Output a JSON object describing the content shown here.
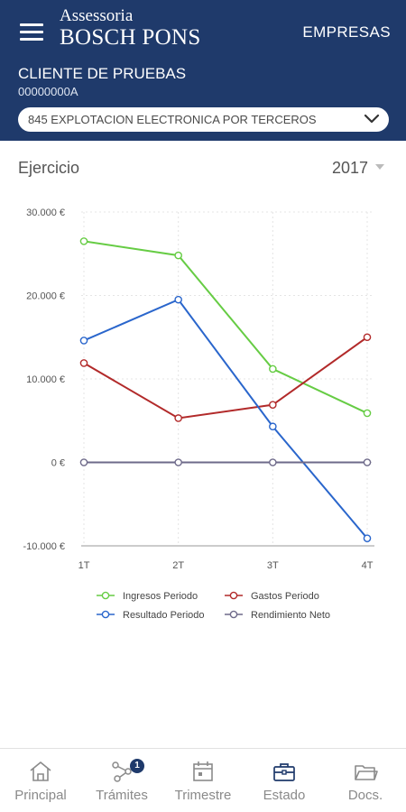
{
  "header": {
    "logo_line1": "Assessoria",
    "logo_line2": "BOSCH PONS",
    "empresas_label": "EMPRESAS",
    "client_name": "CLIENTE DE PRUEBAS",
    "client_id": "00000000A",
    "activity_selected": "845 EXPLOTACION ELECTRONICA POR TERCEROS"
  },
  "filter": {
    "label": "Ejercicio",
    "year": "2017"
  },
  "colors": {
    "header_bg": "#1f3a6b",
    "ingresos": "#66cc44",
    "gastos": "#b22a2a",
    "resultado": "#2a66cc",
    "rendimiento": "#6e6a8a"
  },
  "chart_data": {
    "type": "line",
    "x": [
      "1T",
      "2T",
      "3T",
      "4T"
    ],
    "ylim": [
      -10000,
      30000
    ],
    "y_ticks": [
      "30.000 €",
      "20.000 €",
      "10.000 €",
      "0 €",
      "-10.000 €"
    ],
    "y_tick_values": [
      30000,
      20000,
      10000,
      0,
      -10000
    ],
    "grid": true,
    "legend_position": "bottom",
    "series": [
      {
        "name": "Ingresos Periodo",
        "color": "#66cc44",
        "values": [
          26500,
          24800,
          11200,
          5900
        ]
      },
      {
        "name": "Gastos Periodo",
        "color": "#b22a2a",
        "values": [
          11900,
          5300,
          6900,
          15000
        ]
      },
      {
        "name": "Resultado Periodo",
        "color": "#2a66cc",
        "values": [
          14600,
          19500,
          4300,
          -9100
        ]
      },
      {
        "name": "Rendimiento Neto",
        "color": "#6e6a8a",
        "values": [
          0,
          0,
          0,
          0
        ]
      }
    ]
  },
  "tabs": [
    {
      "label": "Principal",
      "icon": "home-icon"
    },
    {
      "label": "Trámites",
      "icon": "share-network-icon",
      "badge": "1"
    },
    {
      "label": "Trimestre",
      "icon": "calendar-icon"
    },
    {
      "label": "Estado",
      "icon": "briefcase-icon"
    },
    {
      "label": "Docs.",
      "icon": "folder-icon"
    }
  ]
}
